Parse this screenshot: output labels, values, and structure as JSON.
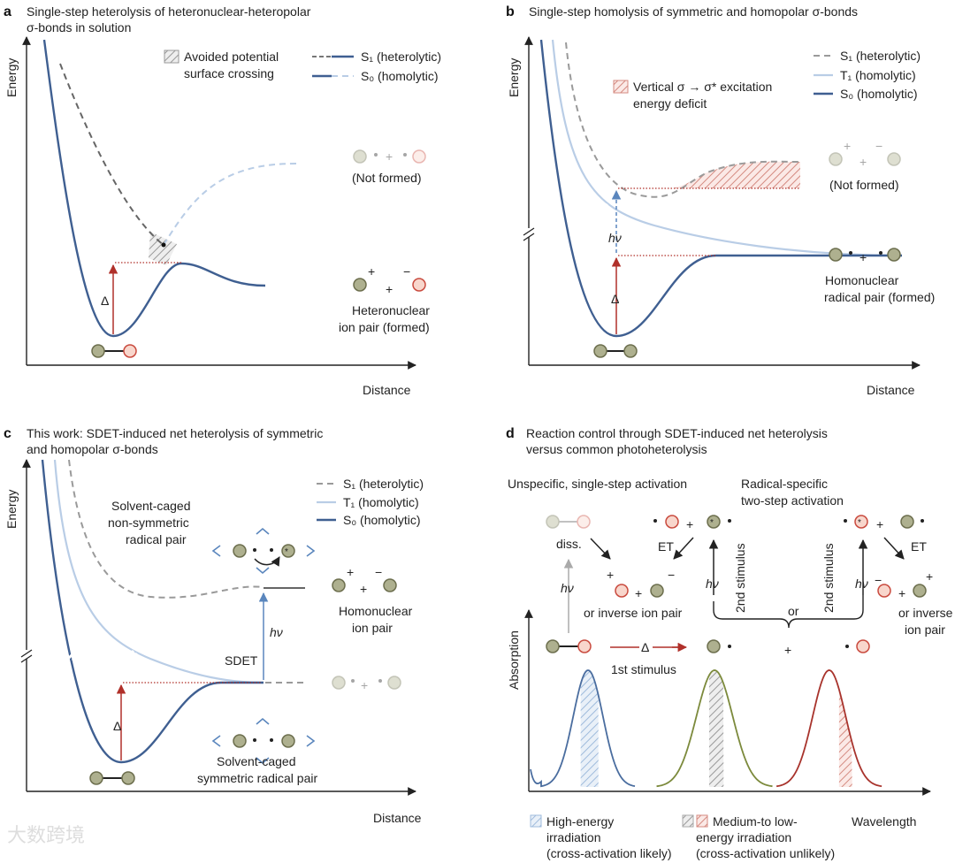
{
  "colors": {
    "s0": "#3f5f91",
    "t1": "#b9cde6",
    "s1": "#9a9a9a",
    "red": "#b0302a",
    "blue": "#5a86bd",
    "green": "#7c8a3c",
    "green_circle": "#aeb08f",
    "pink_circle": "#f8d6cc"
  },
  "panel_a": {
    "label": "a",
    "title1": "Single-step heterolysis of heteronuclear-heteropolar",
    "title2": "σ-bonds in solution",
    "ylabel": "Energy",
    "xlabel": "Distance",
    "legend_hatch1": "Avoided potential",
    "legend_hatch2": "surface crossing",
    "legend_s1": "S₁ (heterolytic)",
    "legend_s0": "S₀ (homolytic)",
    "delta": "Δ",
    "not_formed": "(Not formed)",
    "product1": "Heteronuclear",
    "product2": "ion pair (formed)",
    "plus": "+",
    "minus": "−"
  },
  "panel_b": {
    "label": "b",
    "title1": "Single-step homolysis of symmetric and homopolar σ-bonds",
    "ylabel": "Energy",
    "xlabel": "Distance",
    "legend_s1": "S₁ (heterolytic)",
    "legend_t1": "T₁ (homolytic)",
    "legend_s0": "S₀ (homolytic)",
    "hatch1": "Vertical σ → σ* excitation",
    "hatch2": "energy deficit",
    "hv": "hν",
    "delta": "Δ",
    "not_formed": "(Not formed)",
    "product1": "Homonuclear",
    "product2": "radical pair (formed)",
    "plus": "+",
    "minus": "−"
  },
  "panel_c": {
    "label": "c",
    "title1": "This work: SDET-induced net heterolysis of symmetric",
    "title2": "and homopolar σ-bonds",
    "ylabel": "Energy",
    "xlabel": "Distance",
    "legend_s1": "S₁ (heterolytic)",
    "legend_t1": "T₁ (homolytic)",
    "legend_s0": "S₀ (homolytic)",
    "cage_top1": "Solvent-caged",
    "cage_top2": "non-symmetric",
    "cage_top3": "radical pair",
    "cage_bot1": "Solvent-caged",
    "cage_bot2": "symmetric radical pair",
    "sdet": "SDET",
    "hv": "hν",
    "delta": "Δ",
    "product1": "Homonuclear",
    "product2": "ion pair",
    "plus": "+",
    "minus": "−",
    "star": "*"
  },
  "panel_d": {
    "label": "d",
    "title1": "Reaction control through SDET-induced net heterolysis",
    "title2": "versus common photoheterolysis",
    "unspecific": "Unspecific, single-step activation",
    "radical1": "Radical-specific",
    "radical2": "two-step activation",
    "diss": "diss.",
    "et": "ET",
    "hv": "hν",
    "second_stimulus": "2nd stimulus",
    "or": "or",
    "inverse1": "or inverse ion pair",
    "inverse2a": "or inverse",
    "inverse2b": "ion pair",
    "delta": "Δ",
    "first_stimulus": "1st stimulus",
    "ylabel": "Absorption",
    "xlabel": "Wavelength",
    "legend_high1": "High-energy",
    "legend_high2": "irradiation",
    "legend_high3": "(cross-activation likely)",
    "legend_med1": "Medium-to low-",
    "legend_med2": "energy irradiation",
    "legend_med3": "(cross-activation unlikely)",
    "plus": "+",
    "minus": "−",
    "star": "*",
    "peaks": [
      {
        "name": "blue",
        "color": "#4a6d9f",
        "center": 0.15,
        "width": 0.09
      },
      {
        "name": "green",
        "color": "#7c8a3c",
        "center": 0.47,
        "width": 0.11
      },
      {
        "name": "red",
        "color": "#a8332c",
        "center": 0.76,
        "width": 0.1
      }
    ]
  },
  "watermark": "大数跨境"
}
